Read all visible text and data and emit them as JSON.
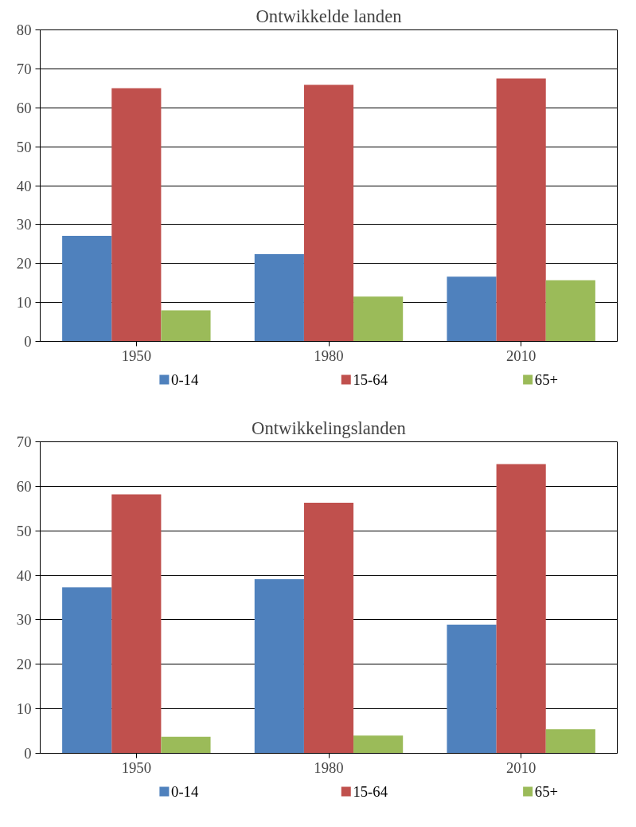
{
  "chart_data": [
    {
      "type": "bar",
      "title": "Ontwikkelde landen",
      "categories": [
        "1950",
        "1980",
        "2010"
      ],
      "series": [
        {
          "name": "0-14",
          "color": "#4f81bd",
          "values": [
            27.1,
            22.4,
            16.6
          ]
        },
        {
          "name": "15-64",
          "color": "#c0504d",
          "values": [
            65.0,
            65.9,
            67.5
          ]
        },
        {
          "name": "65+",
          "color": "#9bbb59",
          "values": [
            8.0,
            11.5,
            15.7
          ]
        }
      ],
      "ylim": [
        0,
        80
      ],
      "yticks": [
        0,
        10,
        20,
        30,
        40,
        50,
        60,
        70,
        80
      ],
      "grid": "y",
      "legend": "bottom"
    },
    {
      "type": "bar",
      "title": "Ontwikkelingslanden",
      "categories": [
        "1950",
        "1980",
        "2010"
      ],
      "series": [
        {
          "name": "0-14",
          "color": "#4f81bd",
          "values": [
            37.3,
            39.1,
            28.9
          ]
        },
        {
          "name": "15-64",
          "color": "#c0504d",
          "values": [
            58.2,
            56.3,
            65.0
          ]
        },
        {
          "name": "65+",
          "color": "#9bbb59",
          "values": [
            3.7,
            4.0,
            5.4
          ]
        }
      ],
      "ylim": [
        0,
        70
      ],
      "yticks": [
        0,
        10,
        20,
        30,
        40,
        50,
        60,
        70
      ],
      "grid": "y",
      "legend": "bottom"
    }
  ]
}
